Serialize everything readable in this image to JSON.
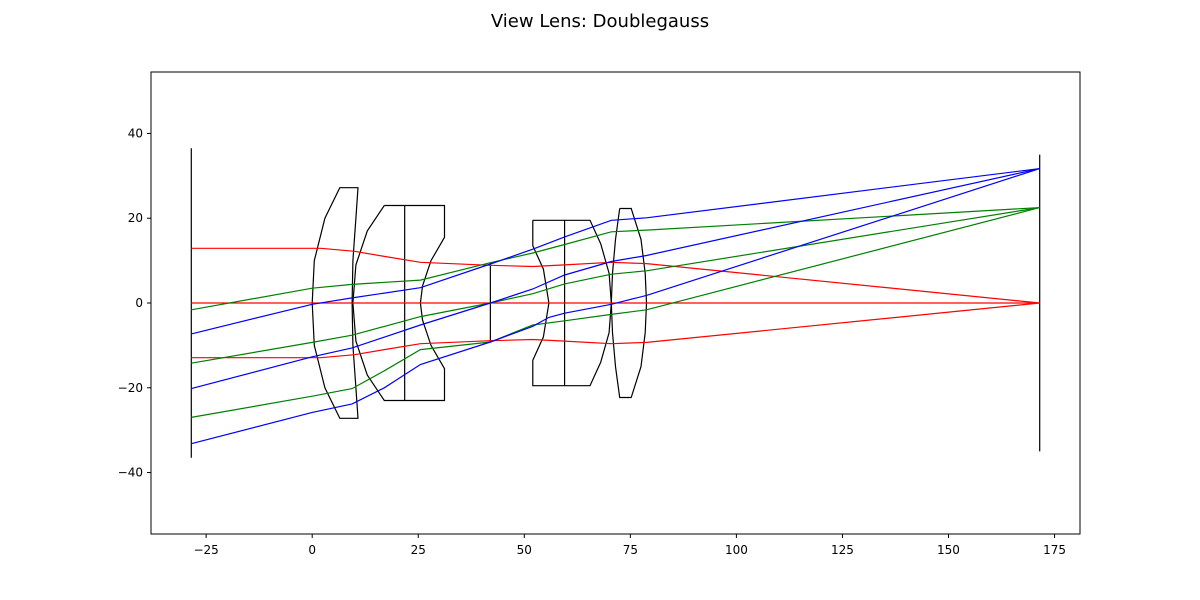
{
  "figure": {
    "title": "View Lens: Doublegauss"
  },
  "chart_data": {
    "type": "line",
    "title": "View Lens: Doublegauss",
    "xlabel": "",
    "ylabel": "",
    "xlim": [
      -38,
      181
    ],
    "ylim": [
      -54.5,
      54.5
    ],
    "grid": false,
    "x_ticks": [
      -25,
      0,
      25,
      50,
      75,
      100,
      125,
      150,
      175
    ],
    "y_ticks": [
      -40,
      -20,
      0,
      20,
      40
    ],
    "colors": {
      "frame": "#000000",
      "lens": "#000000",
      "ray_red": "#ff0000",
      "ray_green": "#008000",
      "ray_blue": "#0000ff"
    },
    "planes": [
      {
        "name": "object-plane",
        "x": -28.5,
        "y_range": [
          -36.5,
          36.5
        ]
      },
      {
        "name": "aperture-stop",
        "x": 42,
        "y_range": [
          -9.2,
          9.5
        ]
      },
      {
        "name": "image-plane",
        "x": 171.5,
        "y_range": [
          -35,
          35
        ]
      }
    ],
    "elements": [
      {
        "name": "lens-element-1",
        "outline": [
          [
            10,
            27.2
          ],
          [
            6.5,
            27.2
          ],
          [
            3,
            20
          ],
          [
            0.5,
            10
          ],
          [
            0,
            0
          ],
          [
            0.5,
            -10
          ],
          [
            3,
            -20
          ],
          [
            6.5,
            -27.2
          ],
          [
            10.8,
            -27.2
          ],
          [
            10.3,
            -20
          ],
          [
            9.6,
            -10
          ],
          [
            9.4,
            0
          ],
          [
            9.6,
            10
          ],
          [
            10.3,
            20
          ],
          [
            10.8,
            27.2
          ],
          [
            10,
            27.2
          ]
        ]
      },
      {
        "name": "lens-doublet-2",
        "outline": [
          [
            17,
            23
          ],
          [
            31.2,
            23
          ],
          [
            31.2,
            15.5
          ],
          [
            28,
            10
          ],
          [
            26,
            4
          ],
          [
            25.5,
            0
          ],
          [
            26,
            -4
          ],
          [
            28,
            -10
          ],
          [
            31.2,
            -15.5
          ],
          [
            31.2,
            -23
          ],
          [
            17,
            -23
          ],
          [
            13,
            -17
          ],
          [
            10.3,
            -9
          ],
          [
            9.6,
            0
          ],
          [
            10.3,
            9
          ],
          [
            13,
            17
          ],
          [
            17,
            23
          ]
        ],
        "cement_x": 21.8
      },
      {
        "name": "lens-doublet-3",
        "outline": [
          [
            52,
            19.5
          ],
          [
            65.5,
            19.5
          ],
          [
            68,
            14
          ],
          [
            70,
            7
          ],
          [
            70.5,
            0
          ],
          [
            70,
            -7
          ],
          [
            68,
            -14
          ],
          [
            65.5,
            -19.5
          ],
          [
            52,
            -19.5
          ],
          [
            52,
            -13.5
          ],
          [
            54.5,
            -8
          ],
          [
            55.8,
            0
          ],
          [
            54.5,
            8
          ],
          [
            52,
            13.5
          ],
          [
            52,
            19.5
          ]
        ],
        "cement_x": 59.5
      },
      {
        "name": "lens-element-4",
        "outline": [
          [
            72.5,
            22.3
          ],
          [
            75.2,
            22.3
          ],
          [
            77.5,
            15
          ],
          [
            78.5,
            7
          ],
          [
            78.8,
            0
          ],
          [
            78.5,
            -7
          ],
          [
            77.5,
            -15
          ],
          [
            75.2,
            -22.3
          ],
          [
            72.5,
            -22.3
          ],
          [
            71.5,
            -15
          ],
          [
            70.8,
            -7
          ],
          [
            70.5,
            0
          ],
          [
            70.8,
            7
          ],
          [
            71.5,
            15
          ],
          [
            72.5,
            22.3
          ]
        ]
      }
    ],
    "series": [
      {
        "color": "red",
        "points": [
          [
            -28.5,
            12.9
          ],
          [
            2,
            12.9
          ],
          [
            10,
            12.2
          ],
          [
            17,
            11
          ],
          [
            25.5,
            9.6
          ],
          [
            42,
            8.9
          ],
          [
            52,
            8.6
          ],
          [
            59.5,
            9.0
          ],
          [
            70.5,
            9.6
          ],
          [
            78.8,
            9.3
          ],
          [
            171.5,
            0
          ]
        ]
      },
      {
        "color": "red",
        "points": [
          [
            -28.5,
            0
          ],
          [
            171.5,
            0
          ]
        ]
      },
      {
        "color": "red",
        "points": [
          [
            -28.5,
            -12.9
          ],
          [
            2,
            -12.9
          ],
          [
            10,
            -12.2
          ],
          [
            17,
            -11
          ],
          [
            25.5,
            -9.6
          ],
          [
            42,
            -8.9
          ],
          [
            52,
            -8.6
          ],
          [
            59.5,
            -9.0
          ],
          [
            70.5,
            -9.6
          ],
          [
            78.8,
            -9.3
          ],
          [
            171.5,
            0
          ]
        ]
      },
      {
        "color": "green",
        "points": [
          [
            -28.5,
            -1.6
          ],
          [
            0,
            3.5
          ],
          [
            9.4,
            4.4
          ],
          [
            25.5,
            5.4
          ],
          [
            42,
            9.5
          ],
          [
            52,
            11.8
          ],
          [
            59.5,
            13.8
          ],
          [
            70.5,
            16.8
          ],
          [
            78.8,
            17.2
          ],
          [
            171.5,
            22.5
          ]
        ]
      },
      {
        "color": "green",
        "points": [
          [
            -28.5,
            -14.2
          ],
          [
            0,
            -9.3
          ],
          [
            9.4,
            -7.6
          ],
          [
            25.5,
            -3.2
          ],
          [
            42,
            0
          ],
          [
            52,
            2.2
          ],
          [
            59.5,
            4.5
          ],
          [
            70.5,
            6.8
          ],
          [
            78.8,
            7.6
          ],
          [
            171.5,
            22.5
          ]
        ]
      },
      {
        "color": "green",
        "points": [
          [
            -28.5,
            -27
          ],
          [
            0,
            -22
          ],
          [
            9.4,
            -20.2
          ],
          [
            17,
            -16
          ],
          [
            25.5,
            -11
          ],
          [
            42,
            -9.2
          ],
          [
            52,
            -5.2
          ],
          [
            59.5,
            -4.2
          ],
          [
            70.5,
            -2.7
          ],
          [
            78.8,
            -1.6
          ],
          [
            171.5,
            22.5
          ]
        ]
      },
      {
        "color": "blue",
        "points": [
          [
            -28.5,
            -7.3
          ],
          [
            0,
            -0.3
          ],
          [
            9.4,
            1.2
          ],
          [
            25.5,
            3.6
          ],
          [
            42,
            9.2
          ],
          [
            52,
            12.7
          ],
          [
            59.5,
            15.6
          ],
          [
            70.5,
            19.5
          ],
          [
            78.8,
            20.1
          ],
          [
            171.5,
            31.7
          ]
        ]
      },
      {
        "color": "blue",
        "points": [
          [
            -28.5,
            -20.2
          ],
          [
            0,
            -12.7
          ],
          [
            9.4,
            -10.6
          ],
          [
            25.5,
            -5.2
          ],
          [
            42,
            0
          ],
          [
            52,
            3.3
          ],
          [
            59.5,
            6.6
          ],
          [
            70.5,
            9.8
          ],
          [
            78.8,
            11.2
          ],
          [
            171.5,
            31.7
          ]
        ]
      },
      {
        "color": "blue",
        "points": [
          [
            -28.5,
            -33.2
          ],
          [
            0,
            -25.8
          ],
          [
            9.4,
            -23.8
          ],
          [
            17,
            -20
          ],
          [
            25.5,
            -14.5
          ],
          [
            42,
            -9.2
          ],
          [
            52,
            -5.5
          ],
          [
            55.8,
            -3.4
          ],
          [
            59.5,
            -2.4
          ],
          [
            70.5,
            -0.3
          ],
          [
            78.8,
            1.8
          ],
          [
            171.5,
            31.7
          ]
        ]
      }
    ]
  }
}
